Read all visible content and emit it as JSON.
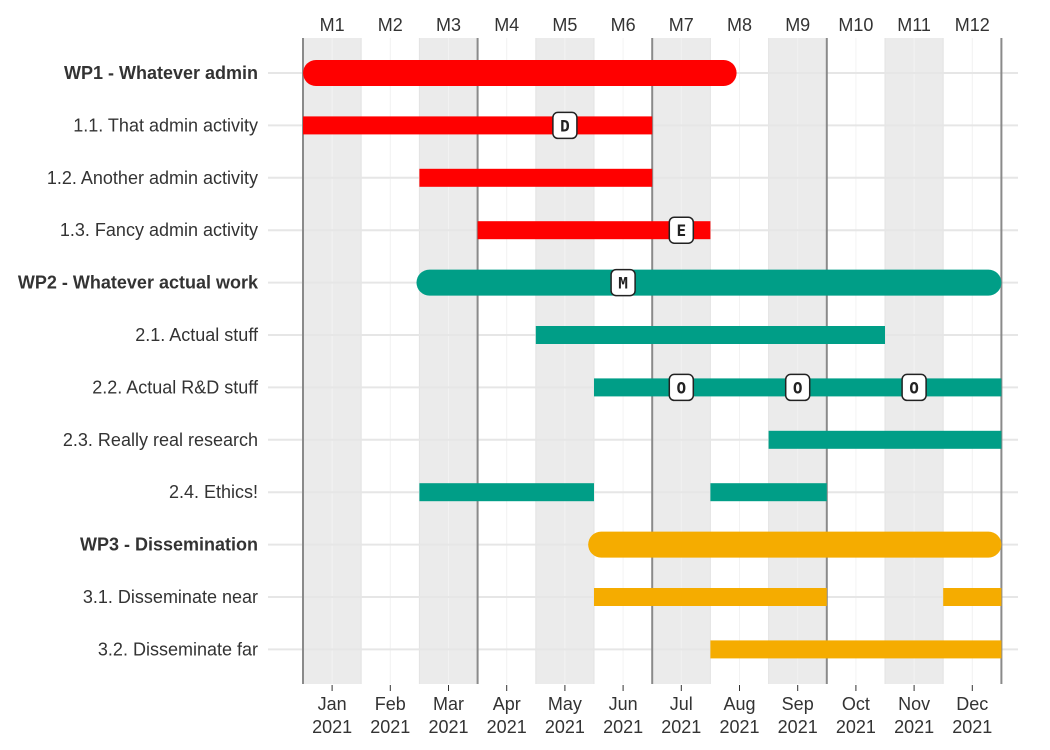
{
  "chart_data": {
    "type": "gantt",
    "title": "",
    "months": [
      "Jan",
      "Feb",
      "Mar",
      "Apr",
      "May",
      "Jun",
      "Jul",
      "Aug",
      "Sep",
      "Oct",
      "Nov",
      "Dec"
    ],
    "year": "2021",
    "month_codes": [
      "M1",
      "M2",
      "M3",
      "M4",
      "M5",
      "M6",
      "M7",
      "M8",
      "M9",
      "M10",
      "M11",
      "M12"
    ],
    "shaded_months": [
      1,
      3,
      5,
      7,
      9,
      11
    ],
    "quarter_lines_after_month": [
      0,
      3,
      6,
      9,
      12
    ],
    "colors": {
      "wp1": "#ff0000",
      "wp2": "#009e87",
      "wp3": "#f5ac00"
    },
    "rows": [
      {
        "label": "WP1 - Whatever admin",
        "kind": "wp",
        "group": "wp1",
        "segments": [
          [
            1.0,
            8.45
          ]
        ]
      },
      {
        "label": "1.1. That admin activity",
        "kind": "task",
        "group": "wp1",
        "segments": [
          [
            1.0,
            7.0
          ]
        ]
      },
      {
        "label": "1.2. Another admin activity",
        "kind": "task",
        "group": "wp1",
        "segments": [
          [
            3.0,
            7.0
          ]
        ]
      },
      {
        "label": "1.3. Fancy admin activity",
        "kind": "task",
        "group": "wp1",
        "segments": [
          [
            4.0,
            8.0
          ]
        ]
      },
      {
        "label": "WP2 - Whatever actual work",
        "kind": "wp",
        "group": "wp2",
        "segments": [
          [
            2.95,
            13.0
          ]
        ]
      },
      {
        "label": "2.1. Actual stuff",
        "kind": "task",
        "group": "wp2",
        "segments": [
          [
            5.0,
            11.0
          ]
        ]
      },
      {
        "label": "2.2. Actual R&D stuff",
        "kind": "task",
        "group": "wp2",
        "segments": [
          [
            6.0,
            13.0
          ]
        ]
      },
      {
        "label": "2.3. Really real research",
        "kind": "task",
        "group": "wp2",
        "segments": [
          [
            9.0,
            13.0
          ]
        ]
      },
      {
        "label": "2.4. Ethics!",
        "kind": "task",
        "group": "wp2",
        "segments": [
          [
            3.0,
            6.0
          ],
          [
            8.0,
            10.0
          ]
        ]
      },
      {
        "label": "WP3 - Dissemination",
        "kind": "wp",
        "group": "wp3",
        "segments": [
          [
            5.9,
            13.0
          ]
        ]
      },
      {
        "label": "3.1. Disseminate near",
        "kind": "task",
        "group": "wp3",
        "segments": [
          [
            6.0,
            10.0
          ],
          [
            12.0,
            13.0
          ]
        ]
      },
      {
        "label": "3.2. Disseminate far",
        "kind": "task",
        "group": "wp3",
        "segments": [
          [
            8.0,
            13.0
          ]
        ]
      }
    ],
    "milestones": [
      {
        "row": 1,
        "month": 5.0,
        "label": "D"
      },
      {
        "row": 3,
        "month": 7.0,
        "label": "E"
      },
      {
        "row": 4,
        "month": 6.0,
        "label": "M"
      },
      {
        "row": 6,
        "month": 7.0,
        "label": "O"
      },
      {
        "row": 6,
        "month": 9.0,
        "label": "O"
      },
      {
        "row": 6,
        "month": 11.0,
        "label": "O"
      }
    ]
  }
}
